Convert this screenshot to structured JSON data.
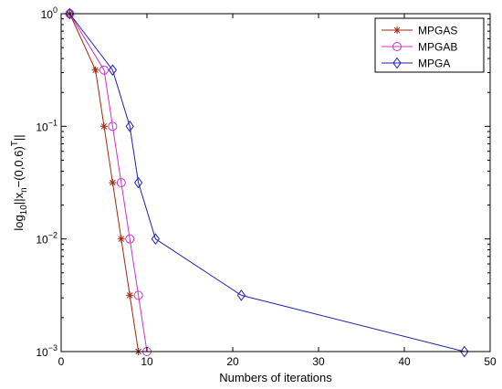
{
  "chart_data": {
    "type": "line",
    "yscale": "log",
    "xlabel": "Numbers of iterations",
    "ylabel": {
      "prefix": "log",
      "base_sub": "10",
      "norm_open": "||x",
      "x_sub": "n",
      "vector": "−(0,0.6)",
      "transpose_sup": "T",
      "norm_close": "||"
    },
    "xlim": [
      0,
      50
    ],
    "ylim": [
      0.001,
      1
    ],
    "x_ticks": [
      {
        "value": 0,
        "label": "0"
      },
      {
        "value": 10,
        "label": "10"
      },
      {
        "value": 20,
        "label": "20"
      },
      {
        "value": 30,
        "label": "30"
      },
      {
        "value": 40,
        "label": "40"
      },
      {
        "value": 50,
        "label": "50"
      }
    ],
    "y_ticks": [
      {
        "value": 1,
        "base": "10",
        "exp": "0"
      },
      {
        "value": 0.1,
        "base": "10",
        "exp": "−1"
      },
      {
        "value": 0.01,
        "base": "10",
        "exp": "−2"
      },
      {
        "value": 0.001,
        "base": "10",
        "exp": "−3"
      }
    ],
    "grid": false,
    "legend_position": "top-right",
    "series": [
      {
        "name": "MPGAS",
        "color": "#a0290f",
        "marker": "asterisk",
        "x": [
          1,
          4,
          5,
          6,
          7,
          8,
          9
        ],
        "y": [
          1,
          0.316,
          0.1,
          0.0316,
          0.01,
          0.00316,
          0.001
        ]
      },
      {
        "name": "MPGAB",
        "color": "#cc33cc",
        "marker": "circle",
        "x": [
          1,
          5,
          6,
          7,
          8,
          9,
          10
        ],
        "y": [
          1,
          0.316,
          0.1,
          0.0316,
          0.01,
          0.00316,
          0.001
        ]
      },
      {
        "name": "MPGA",
        "color": "#1f1fb4",
        "marker": "diamond",
        "x": [
          1,
          6,
          8,
          9,
          11,
          21,
          47
        ],
        "y": [
          1,
          0.316,
          0.1,
          0.0316,
          0.01,
          0.00316,
          0.001
        ]
      }
    ]
  }
}
